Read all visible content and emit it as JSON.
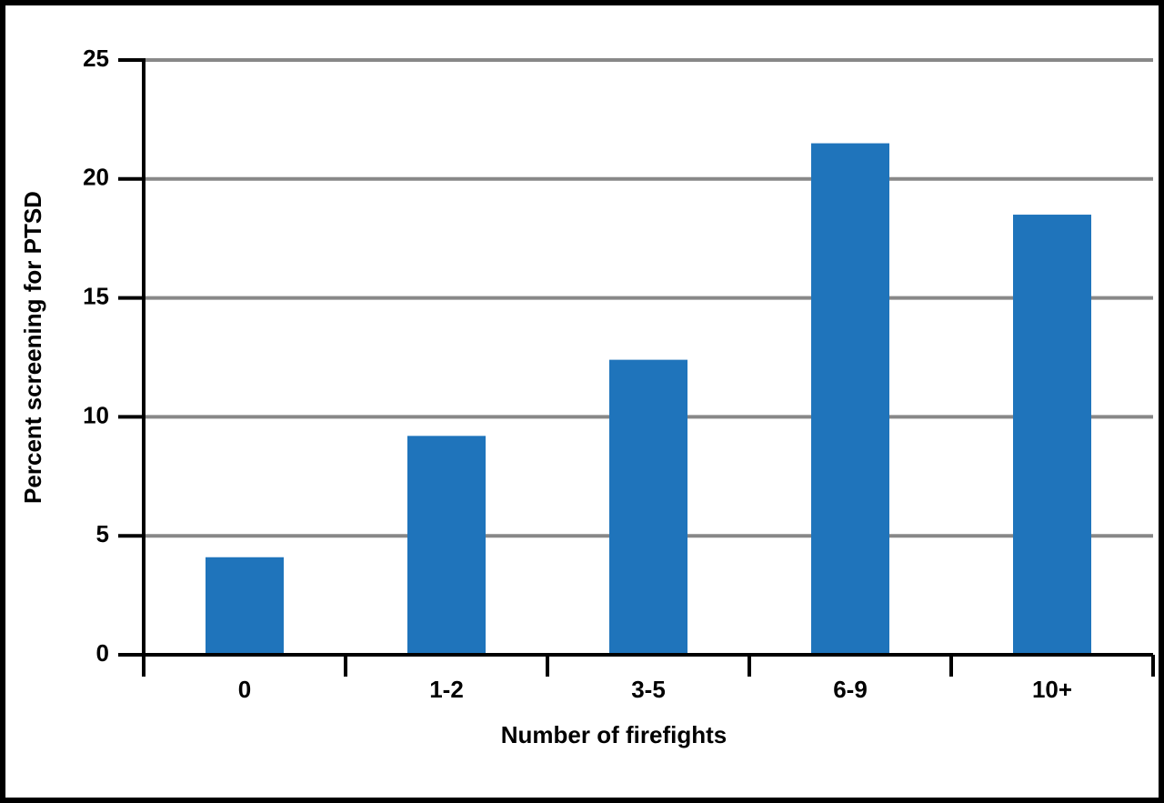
{
  "chart_data": {
    "type": "bar",
    "x_label": "Number of firefights",
    "y_label": "Percent screening  for PTSD",
    "categories": [
      "0",
      "1-2",
      "3-5",
      "6-9",
      "10+"
    ],
    "values": [
      4.1,
      9.2,
      12.4,
      21.5,
      18.5
    ],
    "color": "#1f74bb",
    "ylim": [
      0,
      25
    ],
    "yticks": [
      0,
      5,
      10,
      15,
      20,
      25
    ],
    "grid": true
  }
}
